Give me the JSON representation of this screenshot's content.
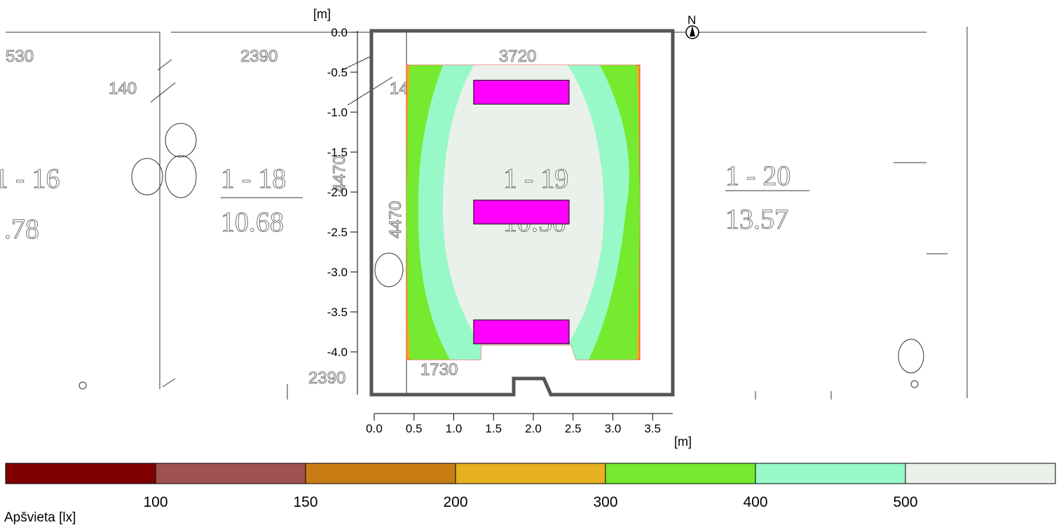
{
  "chart_data": {
    "type": "heatmap",
    "x_axis": {
      "unit": "[m]",
      "range": [
        0.0,
        3.75
      ],
      "ticks": [
        "0.0",
        "0.5",
        "1.0",
        "1.5",
        "2.0",
        "2.5",
        "3.0",
        "3.5"
      ]
    },
    "y_axis": {
      "unit": "[m]",
      "range": [
        0.0,
        -4.5
      ],
      "ticks": [
        "0.0",
        "-0.5",
        "-1.0",
        "-1.5",
        "-2.0",
        "-2.5",
        "-3.0",
        "-3.5",
        "-4.0"
      ]
    },
    "north_label": "N",
    "legend": {
      "title": "Apšvieta [lx]",
      "bands": [
        {
          "color": "#800000"
        },
        {
          "color": "#a05050"
        },
        {
          "color": "#c87d14"
        },
        {
          "color": "#e6b01e"
        },
        {
          "color": "#76ea2e"
        },
        {
          "color": "#98f8c8"
        },
        {
          "color": "#eaf1ea"
        }
      ],
      "thresholds": [
        "100",
        "150",
        "200",
        "300",
        "400",
        "500"
      ]
    },
    "luminaires": [
      {
        "x_range": [
          1.25,
          2.45
        ],
        "y_range": [
          -0.6,
          -0.9
        ]
      },
      {
        "x_range": [
          1.25,
          2.45
        ],
        "y_range": [
          -2.1,
          -2.4
        ]
      },
      {
        "x_range": [
          1.25,
          2.45
        ],
        "y_range": [
          -3.6,
          -3.9
        ]
      }
    ],
    "luminaire_color": "#ff00ff"
  },
  "background_plan": {
    "labels": {
      "dim_top_left": "530",
      "dim_top": "2390",
      "dim_small_left": "140",
      "dim_small_room": "140",
      "dim_top_room": "3720",
      "dim_vertical_room": "4470",
      "dim_vertical_wall": "4470",
      "dim_bottom_room": "1730",
      "dim_bottom_left": "2390",
      "room_a_name": "1 - 18",
      "room_a_area": "10.68",
      "room_b_name": "1 - 19",
      "room_b_area": "10.50",
      "room_c_name": "1 - 20",
      "room_c_area": "13.57",
      "room_left_name": "1 - 16",
      "room_left_area": ".78"
    }
  }
}
